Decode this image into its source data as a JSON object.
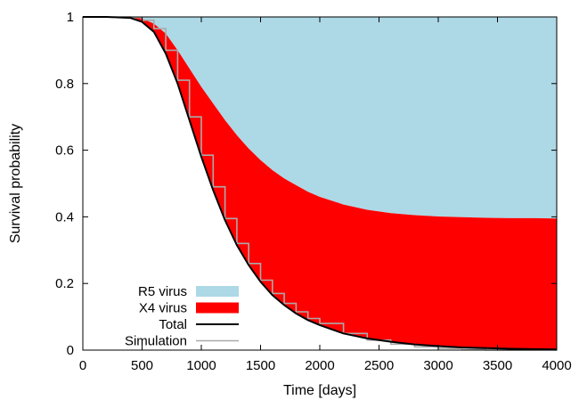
{
  "chart_data": {
    "type": "area",
    "xlabel": "Time [days]",
    "ylabel": "Survival probability",
    "xlim": [
      0,
      4000
    ],
    "ylim": [
      0,
      1
    ],
    "xticks": [
      "0",
      "500",
      "1000",
      "1500",
      "2000",
      "2500",
      "3000",
      "3500",
      "4000"
    ],
    "yticks": [
      "0",
      "0.2",
      "0.4",
      "0.6",
      "0.8",
      "1"
    ],
    "grid": false,
    "legend_position": "bottom-left",
    "colors": {
      "r5": "#add8e6",
      "x4": "#ff0000",
      "total": "#000000",
      "simulation": "#aaaaaa"
    },
    "x": [
      0,
      200,
      400,
      500,
      600,
      700,
      800,
      900,
      1000,
      1100,
      1200,
      1300,
      1400,
      1500,
      1600,
      1700,
      1800,
      1900,
      2000,
      2200,
      2400,
      2600,
      2800,
      3000,
      3200,
      3400,
      3600,
      3800,
      4000
    ],
    "series": [
      {
        "name": "Total",
        "values": [
          1.0,
          1.0,
          0.997,
          0.985,
          0.955,
          0.89,
          0.8,
          0.69,
          0.58,
          0.48,
          0.39,
          0.315,
          0.255,
          0.205,
          0.165,
          0.135,
          0.11,
          0.09,
          0.075,
          0.05,
          0.035,
          0.025,
          0.017,
          0.012,
          0.008,
          0.006,
          0.004,
          0.003,
          0.002
        ]
      },
      {
        "name": "R5 virus",
        "values": [
          1.0,
          1.0,
          0.999,
          0.995,
          0.98,
          0.95,
          0.9,
          0.845,
          0.79,
          0.74,
          0.69,
          0.645,
          0.605,
          0.57,
          0.54,
          0.515,
          0.495,
          0.475,
          0.46,
          0.437,
          0.421,
          0.411,
          0.405,
          0.401,
          0.399,
          0.397,
          0.396,
          0.396,
          0.395
        ]
      },
      {
        "name": "Simulation",
        "values": [
          1.0,
          1.0,
          0.998,
          0.99,
          0.965,
          0.9,
          0.81,
          0.7,
          0.585,
          0.49,
          0.395,
          0.32,
          0.26,
          0.21,
          0.17,
          0.14,
          0.115,
          0.095,
          0.08,
          0.05,
          0.03,
          0.018,
          0.01,
          0.005,
          0.002,
          0.0,
          0.0,
          0.0,
          0.0
        ]
      }
    ],
    "legend": [
      {
        "label": "R5 virus",
        "style": "fill"
      },
      {
        "label": "X4 virus",
        "style": "fill"
      },
      {
        "label": "Total",
        "style": "line"
      },
      {
        "label": "Simulation",
        "style": "line"
      }
    ]
  }
}
